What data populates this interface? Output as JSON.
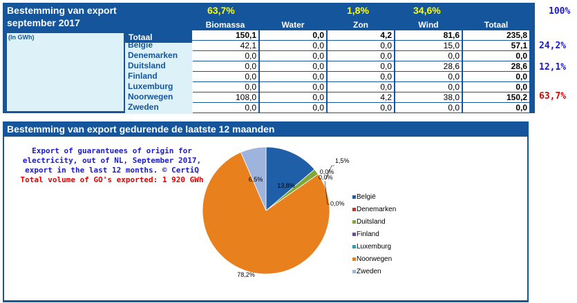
{
  "table": {
    "title_line1": "Bestemming van export",
    "title_line2": "september 2017",
    "unit": "(In GWh)",
    "percentages": {
      "biomassa": "63,7%",
      "zon": "1,8%",
      "wind": "34,6%",
      "total": "100%"
    },
    "columns": [
      "Biomassa",
      "Water",
      "Zon",
      "Wind",
      "Totaal"
    ],
    "total_label": "Totaal",
    "total_values": [
      "150,1",
      "0,0",
      "4,2",
      "81,6",
      "235,8"
    ],
    "rows": [
      {
        "country": "België",
        "values": [
          "42,1",
          "0,0",
          "0,0",
          "15,0",
          "57,1"
        ]
      },
      {
        "country": "Denemarken",
        "values": [
          "0,0",
          "0,0",
          "0,0",
          "0,0",
          "0,0"
        ]
      },
      {
        "country": "Duitsland",
        "values": [
          "0,0",
          "0,0",
          "0,0",
          "28,6",
          "28,6"
        ]
      },
      {
        "country": "Finland",
        "values": [
          "0,0",
          "0,0",
          "0,0",
          "0,0",
          "0,0"
        ]
      },
      {
        "country": "Luxemburg",
        "values": [
          "0,0",
          "0,0",
          "0,0",
          "0,0",
          "0,0"
        ]
      },
      {
        "country": "Noorwegen",
        "values": [
          "108,0",
          "0,0",
          "4,2",
          "38,0",
          "150,2"
        ]
      },
      {
        "country": "Zweden",
        "values": [
          "0,0",
          "0,0",
          "0,0",
          "0,0",
          "0,0"
        ]
      }
    ],
    "side_percentages": [
      {
        "text": "24,2%",
        "color": "#1a1acc"
      },
      {
        "text": "12,1%",
        "color": "#1a1acc"
      },
      {
        "text": "63,7%",
        "color": "#e00000"
      }
    ]
  },
  "bottom": {
    "title": "Bestemming van export gedurende de laatste 12 maanden",
    "note_line1": "Export of guarantuees of origin for",
    "note_line2": "electricity, out of NL, September 2017,",
    "note_line3": "export in the last 12 months. © CertiQ",
    "note_line4": "Total volume of GO's exported: 1 920 GWh"
  },
  "chart_data": {
    "type": "pie",
    "categories": [
      "België",
      "Denemarken",
      "Duitsland",
      "Finland",
      "Luxemburg",
      "Noorwegen",
      "Zweden"
    ],
    "values": [
      13.8,
      0.0,
      1.5,
      0.0,
      0.0,
      78.2,
      6.5
    ],
    "labels": [
      "13,8%",
      "0,0%",
      "1,5%",
      "0,0%",
      "0,0%",
      "78,2%",
      "6,5%"
    ],
    "colors": [
      "#1f5fa8",
      "#c0392b",
      "#7fa838",
      "#6a4c9c",
      "#2aa0b8",
      "#e8801e",
      "#9fb4dc"
    ],
    "legend": "right"
  }
}
